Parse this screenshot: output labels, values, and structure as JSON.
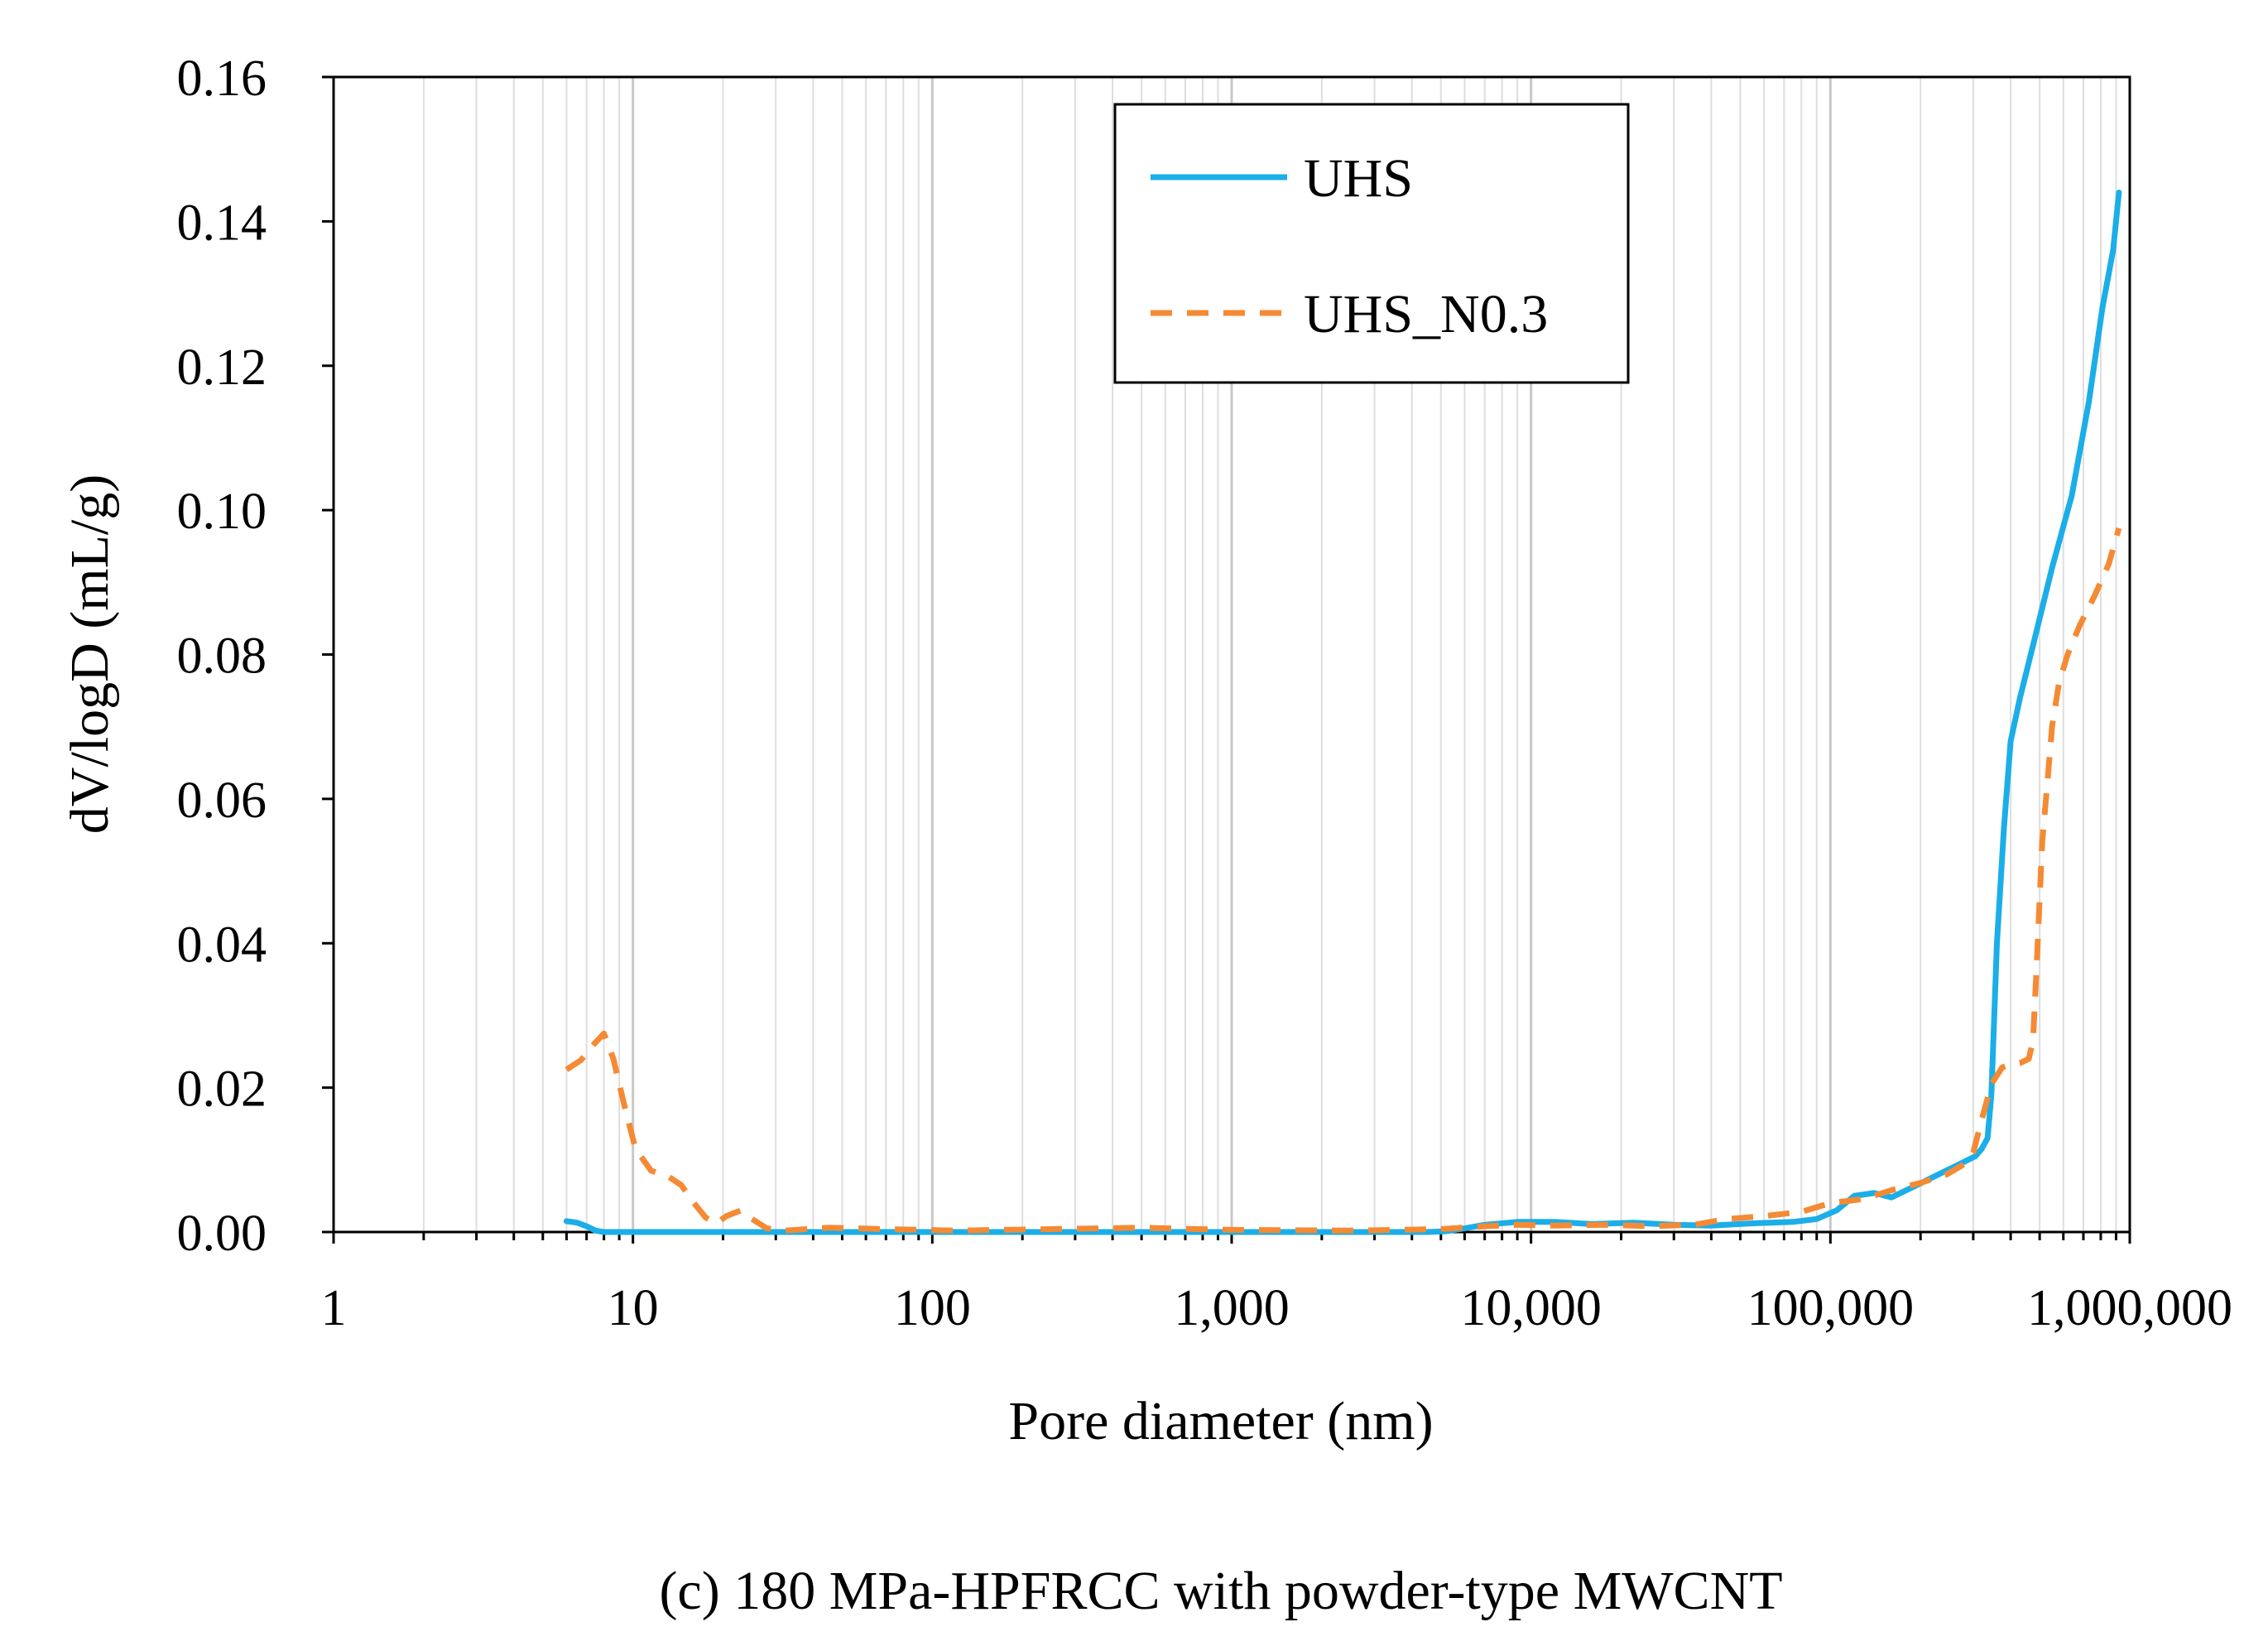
{
  "chart_data": {
    "type": "line",
    "caption": "(c) 180 MPa-HPFRCC with powder-type MWCNT",
    "xlabel": "Pore diameter (nm)",
    "ylabel": "dV/logD (mL/g)",
    "xscale": "log",
    "xlim": [
      1,
      1000000
    ],
    "ylim": [
      0,
      0.16
    ],
    "xticks": [
      {
        "value": 1,
        "label": "1"
      },
      {
        "value": 10,
        "label": "10"
      },
      {
        "value": 100,
        "label": "100"
      },
      {
        "value": 1000,
        "label": "1,000"
      },
      {
        "value": 10000,
        "label": "10,000"
      },
      {
        "value": 100000,
        "label": "100,000"
      },
      {
        "value": 1000000,
        "label": "1,000,000"
      }
    ],
    "yticks": [
      {
        "value": 0,
        "label": "0.00"
      },
      {
        "value": 0.02,
        "label": "0.02"
      },
      {
        "value": 0.04,
        "label": "0.04"
      },
      {
        "value": 0.06,
        "label": "0.06"
      },
      {
        "value": 0.08,
        "label": "0.08"
      },
      {
        "value": 0.1,
        "label": "0.10"
      },
      {
        "value": 0.12,
        "label": "0.12"
      },
      {
        "value": 0.14,
        "label": "0.14"
      },
      {
        "value": 0.16,
        "label": "0.16"
      }
    ],
    "grid": "vertical minor and major log gridlines",
    "legend_position": "top-center",
    "series": [
      {
        "name": "UHS",
        "color": "#1BAEE8",
        "style": "solid",
        "points": [
          [
            6,
            0.0015
          ],
          [
            6.5,
            0.0013
          ],
          [
            7,
            0.0008
          ],
          [
            7.5,
            0.0002
          ],
          [
            8,
            0
          ],
          [
            100,
            0
          ],
          [
            1000,
            0
          ],
          [
            4500,
            0
          ],
          [
            5200,
            0.0001
          ],
          [
            6000,
            0.0005
          ],
          [
            7000,
            0.001
          ],
          [
            9000,
            0.0014
          ],
          [
            12000,
            0.0014
          ],
          [
            16000,
            0.0011
          ],
          [
            22000,
            0.0013
          ],
          [
            30000,
            0.001
          ],
          [
            40000,
            0.0009
          ],
          [
            55000,
            0.0012
          ],
          [
            75000,
            0.0014
          ],
          [
            90000,
            0.0018
          ],
          [
            105000,
            0.003
          ],
          [
            120000,
            0.005
          ],
          [
            140000,
            0.0054
          ],
          [
            160000,
            0.0048
          ],
          [
            190000,
            0.0063
          ],
          [
            230000,
            0.008
          ],
          [
            270000,
            0.0094
          ],
          [
            305000,
            0.0105
          ],
          [
            320000,
            0.0115
          ],
          [
            335000,
            0.013
          ],
          [
            345000,
            0.019
          ],
          [
            360000,
            0.04
          ],
          [
            380000,
            0.056
          ],
          [
            400000,
            0.068
          ],
          [
            430000,
            0.074
          ],
          [
            480000,
            0.082
          ],
          [
            550000,
            0.092
          ],
          [
            640000,
            0.102
          ],
          [
            730000,
            0.115
          ],
          [
            810000,
            0.128
          ],
          [
            880000,
            0.136
          ],
          [
            920000,
            0.144
          ]
        ]
      },
      {
        "name": "UHS_N0.3",
        "color": "#F58A34",
        "style": "dashed",
        "points": [
          [
            6,
            0.0225
          ],
          [
            6.7,
            0.0238
          ],
          [
            7.4,
            0.026
          ],
          [
            8,
            0.0275
          ],
          [
            8.6,
            0.024
          ],
          [
            9.3,
            0.018
          ],
          [
            10.2,
            0.0115
          ],
          [
            11.5,
            0.0085
          ],
          [
            13,
            0.0078
          ],
          [
            14.5,
            0.0065
          ],
          [
            16,
            0.004
          ],
          [
            17.5,
            0.002
          ],
          [
            19,
            0.0012
          ],
          [
            20.5,
            0.0022
          ],
          [
            23,
            0.003
          ],
          [
            25,
            0.0018
          ],
          [
            28,
            0.0005
          ],
          [
            32,
            0.0002
          ],
          [
            45,
            0.0006
          ],
          [
            70,
            0.0004
          ],
          [
            120,
            0.0002
          ],
          [
            250,
            0.0004
          ],
          [
            500,
            0.0006
          ],
          [
            1000,
            0.0003
          ],
          [
            2500,
            0.0002
          ],
          [
            5000,
            0.0004
          ],
          [
            7000,
            0.0008
          ],
          [
            9000,
            0.001
          ],
          [
            12000,
            0.0009
          ],
          [
            18000,
            0.001
          ],
          [
            25000,
            0.0008
          ],
          [
            35000,
            0.001
          ],
          [
            45000,
            0.0018
          ],
          [
            60000,
            0.0022
          ],
          [
            80000,
            0.0028
          ],
          [
            100000,
            0.004
          ],
          [
            130000,
            0.0046
          ],
          [
            160000,
            0.0058
          ],
          [
            200000,
            0.0068
          ],
          [
            245000,
            0.008
          ],
          [
            280000,
            0.0094
          ],
          [
            300000,
            0.011
          ],
          [
            320000,
            0.0155
          ],
          [
            345000,
            0.0205
          ],
          [
            375000,
            0.0228
          ],
          [
            400000,
            0.0232
          ],
          [
            430000,
            0.0234
          ],
          [
            460000,
            0.024
          ],
          [
            475000,
            0.0265
          ],
          [
            490000,
            0.038
          ],
          [
            510000,
            0.054
          ],
          [
            530000,
            0.062
          ],
          [
            550000,
            0.07
          ],
          [
            580000,
            0.076
          ],
          [
            620000,
            0.08
          ],
          [
            680000,
            0.084
          ],
          [
            760000,
            0.088
          ],
          [
            850000,
            0.0925
          ],
          [
            920000,
            0.0975
          ]
        ]
      }
    ]
  }
}
